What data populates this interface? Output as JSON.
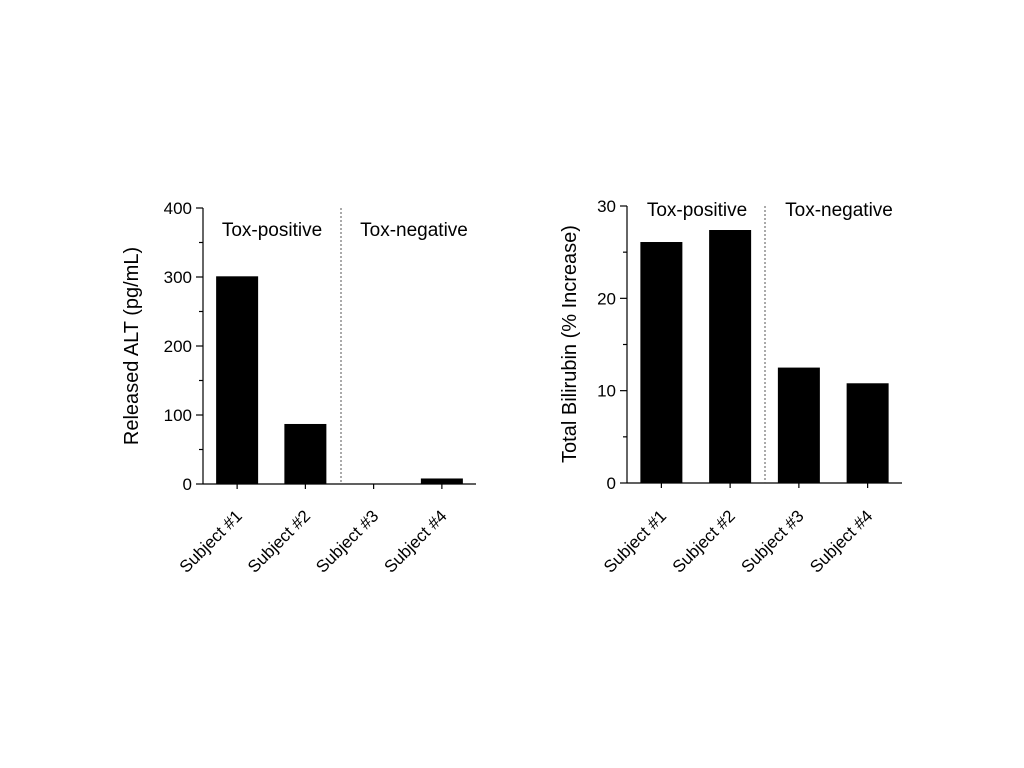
{
  "chart_data": [
    {
      "type": "bar",
      "title": "",
      "xlabel": "",
      "ylabel": "Released ALT (pg/mL)",
      "categories": [
        "Subject #1",
        "Subject #2",
        "Subject #3",
        "Subject #4"
      ],
      "values": [
        301,
        87,
        0,
        8
      ],
      "ylim": [
        0,
        400
      ],
      "yticks": [
        "0",
        "100",
        "200",
        "300",
        "400"
      ],
      "group_labels": [
        "Tox-positive",
        "Tox-negative"
      ],
      "bar_color": "#000000",
      "grid": false
    },
    {
      "type": "bar",
      "title": "",
      "xlabel": "",
      "ylabel": "Total Bilirubin (% Increase)",
      "categories": [
        "Subject #1",
        "Subject #2",
        "Subject #3",
        "Subject #4"
      ],
      "values": [
        26.1,
        27.4,
        12.5,
        10.8
      ],
      "ylim": [
        0,
        30
      ],
      "yticks": [
        "0",
        "10",
        "20",
        "30"
      ],
      "group_labels": [
        "Tox-positive",
        "Tox-negative"
      ],
      "bar_color": "#000000",
      "grid": false
    }
  ]
}
